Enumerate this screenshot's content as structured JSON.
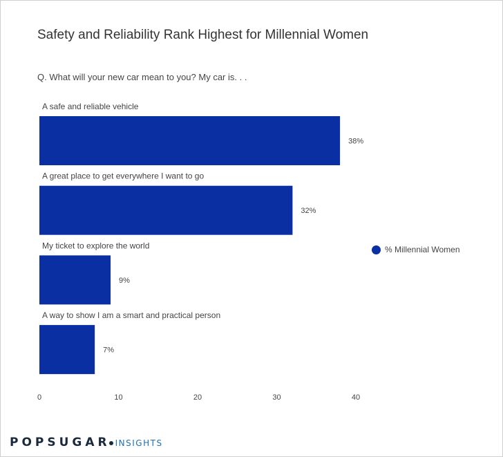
{
  "chart_data": {
    "type": "bar",
    "orientation": "horizontal",
    "title": "Safety and Reliability Rank Highest for Millennial Women",
    "subtitle": "Q. What will your new car mean to you? My car is. . .",
    "categories": [
      "A safe and reliable vehicle",
      "A great place to get everywhere I want to go",
      "My ticket to explore the world",
      "A way to show I am a smart and practical person"
    ],
    "series": [
      {
        "name": "% Millennial Women",
        "values": [
          38,
          32,
          9,
          7
        ]
      }
    ],
    "value_labels": [
      "38%",
      "32%",
      "9%",
      "7%"
    ],
    "xlim": [
      0,
      40
    ],
    "xticks": [
      0,
      10,
      20,
      30,
      40
    ],
    "grid": false,
    "legend_position": "right",
    "colors": {
      "bar": "#0a2fa3",
      "text": "#444444"
    }
  },
  "brand": {
    "main": "POPSUGAR",
    "sub": "INSIGHTS"
  }
}
